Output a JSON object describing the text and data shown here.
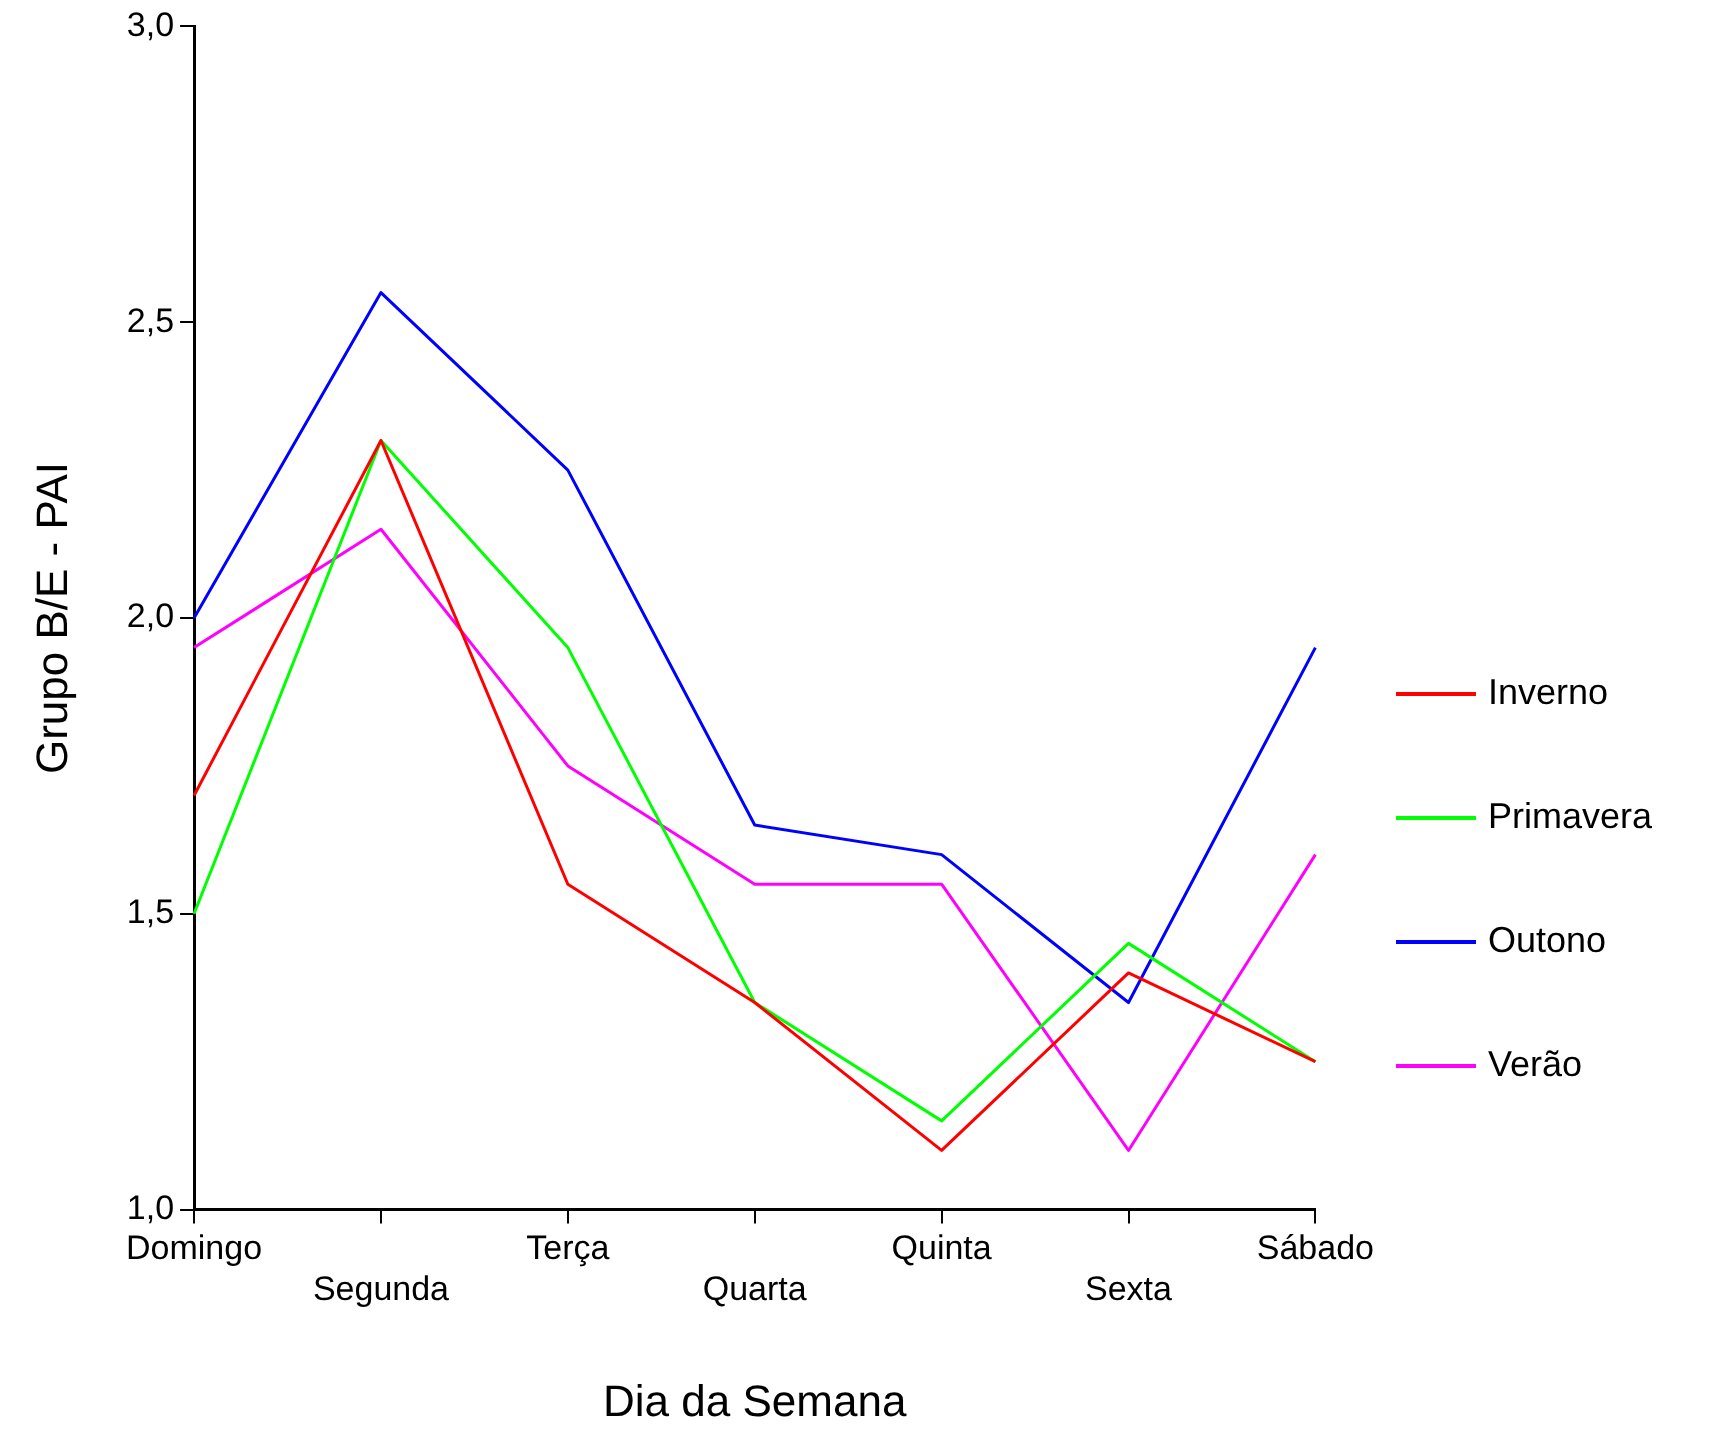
{
  "chart_data": {
    "type": "line",
    "xlabel": "Dia da Semana",
    "ylabel": "Grupo B/E - PAI",
    "categories": [
      "Domingo",
      "Segunda",
      "Terça",
      "Quarta",
      "Quinta",
      "Sexta",
      "Sábado"
    ],
    "ylim": [
      1,
      3
    ],
    "yticks": [
      {
        "value": 1,
        "label": "1,0"
      },
      {
        "value": 1.5,
        "label": "1,5"
      },
      {
        "value": 2,
        "label": "2,0"
      },
      {
        "value": 2.5,
        "label": "2,5"
      },
      {
        "value": 3,
        "label": "3,0"
      }
    ],
    "grid": false,
    "legend": "right",
    "marker": "none",
    "line_style": "solid",
    "series": [
      {
        "name": "Inverno",
        "color": "#ff0000",
        "values": [
          1.7,
          2.3,
          1.55,
          1.35,
          1.1,
          1.4,
          1.25
        ]
      },
      {
        "name": "Primavera",
        "color": "#00ff00",
        "values": [
          1.5,
          2.3,
          1.95,
          1.35,
          1.15,
          1.45,
          1.25
        ]
      },
      {
        "name": "Outono",
        "color": "#0000ff",
        "values": [
          2.0,
          2.55,
          2.25,
          1.65,
          1.6,
          1.35,
          1.95
        ]
      },
      {
        "name": "Verão",
        "color": "#ff00ff",
        "values": [
          1.95,
          2.15,
          1.75,
          1.55,
          1.55,
          1.1,
          1.6
        ]
      }
    ]
  }
}
